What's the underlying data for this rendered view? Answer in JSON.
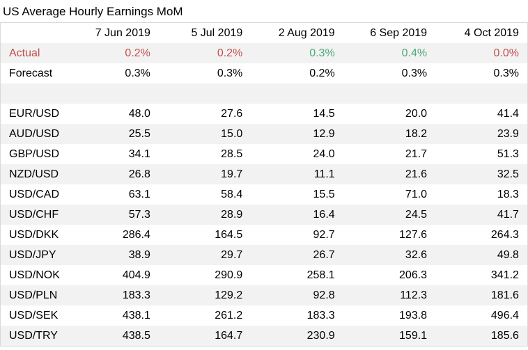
{
  "title": "US Average Hourly Earnings MoM",
  "colors": {
    "negative": "#c0504d",
    "positive": "#4aa978",
    "neutral": "#000000",
    "row_shade": "#f2f2f2"
  },
  "columns": [
    "",
    "7 Jun 2019",
    "5 Jul 2019",
    "2 Aug 2019",
    "6 Sep 2019",
    "4 Oct 2019"
  ],
  "actual": {
    "label": "Actual",
    "values": [
      "0.2%",
      "0.2%",
      "0.3%",
      "0.4%",
      "0.0%"
    ],
    "status": [
      "red",
      "red",
      "green",
      "green",
      "red"
    ]
  },
  "forecast": {
    "label": "Forecast",
    "values": [
      "0.3%",
      "0.3%",
      "0.2%",
      "0.3%",
      "0.3%"
    ]
  },
  "pairs": [
    {
      "label": "EUR/USD",
      "values": [
        "48.0",
        "27.6",
        "14.5",
        "20.0",
        "41.4"
      ]
    },
    {
      "label": "AUD/USD",
      "values": [
        "25.5",
        "15.0",
        "12.9",
        "18.2",
        "23.9"
      ]
    },
    {
      "label": "GBP/USD",
      "values": [
        "34.1",
        "28.5",
        "24.0",
        "21.7",
        "51.3"
      ]
    },
    {
      "label": "NZD/USD",
      "values": [
        "26.8",
        "19.7",
        "11.1",
        "21.6",
        "32.5"
      ]
    },
    {
      "label": "USD/CAD",
      "values": [
        "63.1",
        "58.4",
        "15.5",
        "71.0",
        "18.3"
      ]
    },
    {
      "label": "USD/CHF",
      "values": [
        "57.3",
        "28.9",
        "16.4",
        "24.5",
        "41.7"
      ]
    },
    {
      "label": "USD/DKK",
      "values": [
        "286.4",
        "164.5",
        "92.7",
        "127.6",
        "264.3"
      ]
    },
    {
      "label": "USD/JPY",
      "values": [
        "38.9",
        "29.7",
        "26.7",
        "32.6",
        "49.8"
      ]
    },
    {
      "label": "USD/NOK",
      "values": [
        "404.9",
        "290.9",
        "258.1",
        "206.3",
        "341.2"
      ]
    },
    {
      "label": "USD/PLN",
      "values": [
        "183.3",
        "129.2",
        "92.8",
        "112.3",
        "181.6"
      ]
    },
    {
      "label": "USD/SEK",
      "values": [
        "438.1",
        "261.2",
        "183.3",
        "193.8",
        "496.4"
      ]
    },
    {
      "label": "USD/TRY",
      "values": [
        "438.5",
        "164.7",
        "230.9",
        "159.1",
        "185.6"
      ]
    }
  ]
}
